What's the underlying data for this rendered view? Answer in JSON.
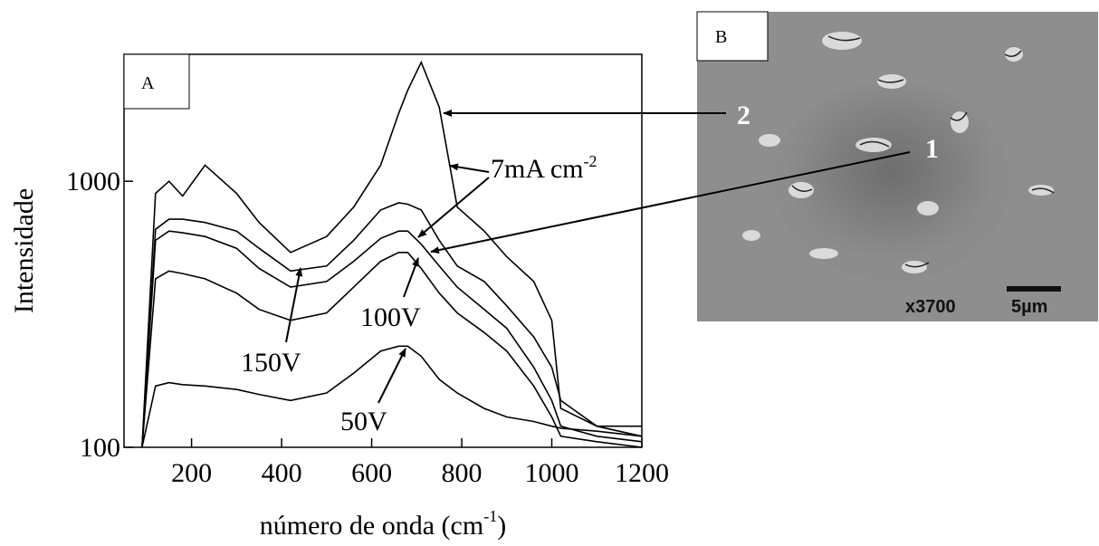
{
  "chart_data": {
    "type": "line",
    "panel_label": "A",
    "x_label": {
      "text": "número de onda (cm",
      "sup": "-1",
      "end": ")"
    },
    "y_label": "Intensidade",
    "x": [
      90,
      120,
      150,
      180,
      230,
      300,
      350,
      420,
      500,
      560,
      620,
      660,
      680,
      710,
      750,
      790,
      850,
      900,
      960,
      1000,
      1020,
      1100,
      1200
    ],
    "series": [
      {
        "color": "#000000",
        "values": [
          100,
          900,
          1000,
          880,
          1150,
          900,
          700,
          540,
          620,
          800,
          1150,
          1800,
          2200,
          2800,
          1900,
          800,
          650,
          520,
          420,
          300,
          140,
          120,
          120
        ]
      },
      {
        "color": "#000000",
        "values": [
          100,
          660,
          720,
          720,
          700,
          650,
          560,
          460,
          480,
          600,
          780,
          830,
          820,
          780,
          600,
          480,
          420,
          340,
          260,
          200,
          150,
          120,
          110
        ]
      },
      {
        "color": "#000000",
        "values": [
          100,
          600,
          650,
          640,
          620,
          560,
          470,
          400,
          420,
          500,
          610,
          650,
          650,
          580,
          480,
          400,
          330,
          280,
          200,
          150,
          120,
          110,
          105
        ]
      },
      {
        "color": "#000000",
        "values": [
          100,
          430,
          460,
          450,
          430,
          380,
          330,
          300,
          320,
          400,
          500,
          540,
          540,
          470,
          380,
          320,
          270,
          230,
          170,
          130,
          110,
          105,
          100
        ]
      },
      {
        "color": "#000000",
        "values": [
          100,
          170,
          175,
          172,
          170,
          165,
          158,
          150,
          160,
          190,
          230,
          240,
          240,
          220,
          180,
          160,
          140,
          130,
          125,
          120,
          118,
          115,
          110
        ]
      }
    ],
    "xlim": [
      50,
      1200
    ],
    "ylim": [
      100,
      3000
    ],
    "xticks": [
      200,
      400,
      600,
      800,
      1000,
      1200
    ],
    "yticks": [
      100,
      1000
    ],
    "y_scale": "log",
    "annotations": [
      {
        "text": "7mA cm",
        "sup": "-2"
      },
      {
        "text": "100V"
      },
      {
        "text": "150V"
      },
      {
        "text": "50V"
      }
    ]
  },
  "image": {
    "panel_label": "B",
    "markers": [
      "1",
      "2"
    ],
    "magnification": "x3700",
    "scale_bar": "5µm"
  }
}
